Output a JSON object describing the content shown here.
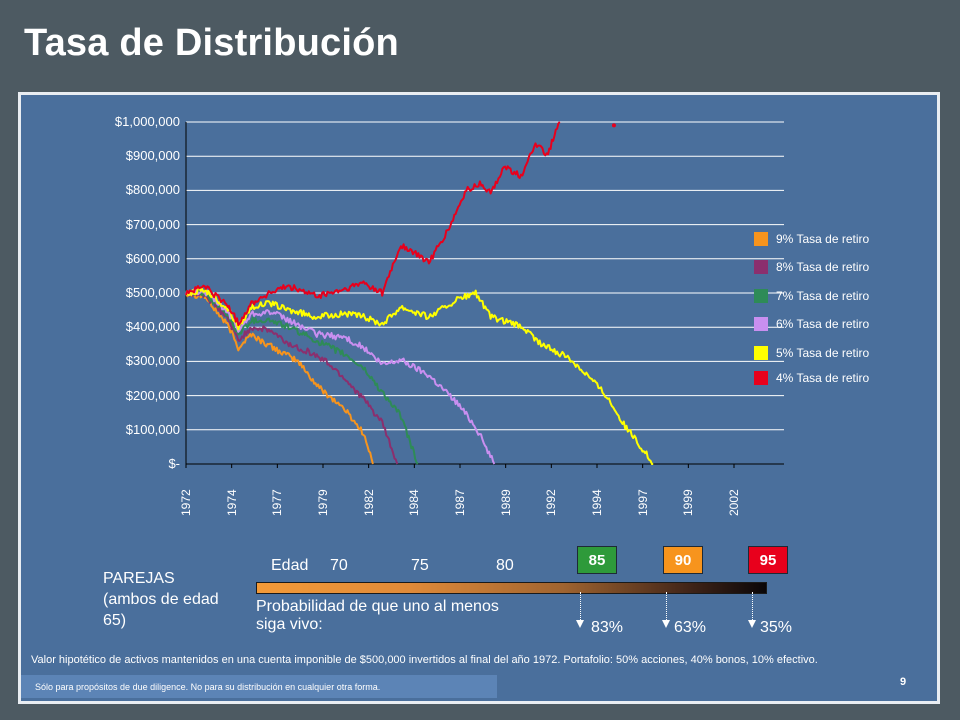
{
  "title": "Tasa de Distribución",
  "chart_data": {
    "type": "line",
    "title": "",
    "xlabel": "",
    "ylabel": "",
    "x_tick_labels": [
      "1972",
      "1974",
      "1977",
      "1979",
      "1982",
      "1984",
      "1987",
      "1989",
      "1992",
      "1994",
      "1997",
      "1999",
      "2002"
    ],
    "y_tick_labels": [
      "$-",
      "$100,000",
      "$200,000",
      "$300,000",
      "$400,000",
      "$500,000",
      "$600,000",
      "$700,000",
      "$800,000",
      "$900,000",
      "$1,000,000"
    ],
    "xlim": [
      1972,
      2004
    ],
    "ylim": [
      0,
      1000000
    ],
    "grid": true,
    "legend_position": "right",
    "series": [
      {
        "name": "9% Tasa de retiro",
        "color": "#f7941d",
        "points": [
          [
            1972,
            500000
          ],
          [
            1973,
            490000
          ],
          [
            1974.3,
            400000
          ],
          [
            1974.8,
            340000
          ],
          [
            1975.5,
            380000
          ],
          [
            1976,
            360000
          ],
          [
            1977,
            330000
          ],
          [
            1978,
            300000
          ],
          [
            1979,
            230000
          ],
          [
            1980.5,
            160000
          ],
          [
            1981.5,
            90000
          ],
          [
            1982,
            0
          ]
        ]
      },
      {
        "name": "8% Tasa de retiro",
        "color": "#8b2f6e",
        "points": [
          [
            1972,
            500000
          ],
          [
            1973,
            495000
          ],
          [
            1974.3,
            420000
          ],
          [
            1974.8,
            360000
          ],
          [
            1975.5,
            400000
          ],
          [
            1976.5,
            390000
          ],
          [
            1977.5,
            350000
          ],
          [
            1978.5,
            330000
          ],
          [
            1979.5,
            300000
          ],
          [
            1980.5,
            250000
          ],
          [
            1981.5,
            190000
          ],
          [
            1982.5,
            120000
          ],
          [
            1983.3,
            0
          ]
        ]
      },
      {
        "name": "7% Tasa de retiro",
        "color": "#2e8b57",
        "points": [
          [
            1972,
            500000
          ],
          [
            1973,
            500000
          ],
          [
            1974.3,
            430000
          ],
          [
            1974.8,
            380000
          ],
          [
            1975.5,
            420000
          ],
          [
            1976.5,
            420000
          ],
          [
            1977.5,
            400000
          ],
          [
            1979,
            360000
          ],
          [
            1980.5,
            320000
          ],
          [
            1981.5,
            280000
          ],
          [
            1982.5,
            210000
          ],
          [
            1983.5,
            140000
          ],
          [
            1984.4,
            0
          ]
        ]
      },
      {
        "name": "6% Tasa de retiro",
        "color": "#c98ff0",
        "points": [
          [
            1972,
            500000
          ],
          [
            1973,
            505000
          ],
          [
            1974.3,
            440000
          ],
          [
            1974.8,
            390000
          ],
          [
            1975.5,
            440000
          ],
          [
            1976.5,
            445000
          ],
          [
            1977.5,
            420000
          ],
          [
            1979,
            380000
          ],
          [
            1980.5,
            370000
          ],
          [
            1981.5,
            340000
          ],
          [
            1982.5,
            290000
          ],
          [
            1983.5,
            305000
          ],
          [
            1985,
            260000
          ],
          [
            1986.5,
            180000
          ],
          [
            1987.5,
            110000
          ],
          [
            1988.5,
            0
          ]
        ]
      },
      {
        "name": "5% Tasa de retiro",
        "color": "#ffff00",
        "points": [
          [
            1972,
            500000
          ],
          [
            1973,
            510000
          ],
          [
            1974.3,
            450000
          ],
          [
            1974.8,
            400000
          ],
          [
            1975.5,
            460000
          ],
          [
            1976.5,
            470000
          ],
          [
            1977.5,
            450000
          ],
          [
            1979,
            430000
          ],
          [
            1980.5,
            440000
          ],
          [
            1981.5,
            430000
          ],
          [
            1982.5,
            410000
          ],
          [
            1983.5,
            460000
          ],
          [
            1985,
            430000
          ],
          [
            1986.5,
            480000
          ],
          [
            1987.5,
            500000
          ],
          [
            1988.3,
            430000
          ],
          [
            1990,
            400000
          ],
          [
            1991,
            350000
          ],
          [
            1992.5,
            310000
          ],
          [
            1993.5,
            260000
          ],
          [
            1994.5,
            200000
          ],
          [
            1995.5,
            110000
          ],
          [
            1996.5,
            40000
          ],
          [
            1997,
            0
          ]
        ]
      },
      {
        "name": "4% Tasa de retiro",
        "color": "#e8001c",
        "points": [
          [
            1972,
            500000
          ],
          [
            1973,
            520000
          ],
          [
            1974.3,
            460000
          ],
          [
            1974.8,
            410000
          ],
          [
            1975.5,
            470000
          ],
          [
            1976.5,
            500000
          ],
          [
            1977.5,
            520000
          ],
          [
            1979,
            490000
          ],
          [
            1980.5,
            510000
          ],
          [
            1981.5,
            530000
          ],
          [
            1982.5,
            500000
          ],
          [
            1983.5,
            640000
          ],
          [
            1985,
            590000
          ],
          [
            1986,
            680000
          ],
          [
            1987,
            800000
          ],
          [
            1987.8,
            820000
          ],
          [
            1988.3,
            790000
          ],
          [
            1989,
            870000
          ],
          [
            1990,
            840000
          ],
          [
            1990.7,
            940000
          ],
          [
            1991.3,
            900000
          ],
          [
            1992,
            1000000
          ]
        ]
      }
    ],
    "annotations": [
      "Edad",
      "70",
      "75",
      "80",
      "85",
      "90",
      "95",
      "83%",
      "63%",
      "35%"
    ]
  },
  "couples": {
    "line1": "PAREJAS",
    "line2": "(ambos de edad",
    "line3": "65)"
  },
  "ages": {
    "label": "Edad",
    "a70": "70",
    "a75": "75",
    "a80": "80"
  },
  "age_boxes": [
    {
      "label": "85",
      "color": "#2e9a3a",
      "pct": "83%"
    },
    {
      "label": "90",
      "color": "#f7941d",
      "pct": "63%"
    },
    {
      "label": "95",
      "color": "#e8001c",
      "pct": "35%"
    }
  ],
  "probability_text": "Probabilidad de que uno al menos siga vivo:",
  "footnote": "Valor hipotético de activos mantenidos en una cuenta imponible de  $500,000 invertidos al final del año 1972.  Portafolio: 50% acciones, 40% bonos, 10% efectivo.",
  "disclaimer": "Sólo para propósitos de due diligence.  No para su distribución en cualquier otra forma.",
  "page_number": "9"
}
